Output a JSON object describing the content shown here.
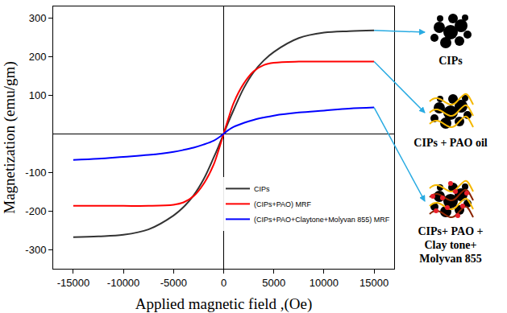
{
  "chart_data": {
    "type": "line",
    "xlabel": "Applied magnetic field ,(Oe)",
    "ylabel": "Magnetization (emu/gm)",
    "x": [
      -15000,
      -12500,
      -10000,
      -7500,
      -5000,
      -4000,
      -3000,
      -2000,
      -1000,
      -500,
      0,
      500,
      1000,
      2000,
      3000,
      4000,
      5000,
      7500,
      10000,
      12500,
      15000
    ],
    "series": [
      {
        "name": "CIPs",
        "color": "#333333",
        "values": [
          -268,
          -266,
          -262,
          -248,
          -212,
          -190,
          -160,
          -118,
          -62,
          -32,
          0,
          32,
          62,
          118,
          160,
          190,
          212,
          248,
          262,
          266,
          268
        ]
      },
      {
        "name": "(CIPs+PAO) MRF",
        "color": "#ff0000",
        "values": [
          -187,
          -187,
          -187,
          -187,
          -184,
          -178,
          -162,
          -130,
          -80,
          -42,
          0,
          42,
          80,
          130,
          162,
          178,
          184,
          187,
          187,
          187,
          187
        ]
      },
      {
        "name": "(CIPs+PAO+Claytone+Molyvan 855) MRF",
        "color": "#0000ff",
        "values": [
          -68,
          -65,
          -60,
          -55,
          -47,
          -42,
          -36,
          -28,
          -18,
          -10,
          0,
          10,
          18,
          28,
          36,
          42,
          47,
          55,
          60,
          65,
          68
        ]
      }
    ],
    "xlim": [
      -17000,
      17000
    ],
    "ylim": [
      -350,
      330
    ],
    "xticks": [
      -15000,
      -10000,
      -5000,
      0,
      5000,
      10000,
      15000
    ],
    "yticks": [
      -300,
      -200,
      -100,
      100,
      200,
      300
    ],
    "grid": false,
    "legend": "lower right"
  },
  "illustration": {
    "labels": [
      "CIPs",
      "CIPs + PAO oil",
      "CIPs+ PAO + Clay tone+ Molyvan 855"
    ]
  }
}
